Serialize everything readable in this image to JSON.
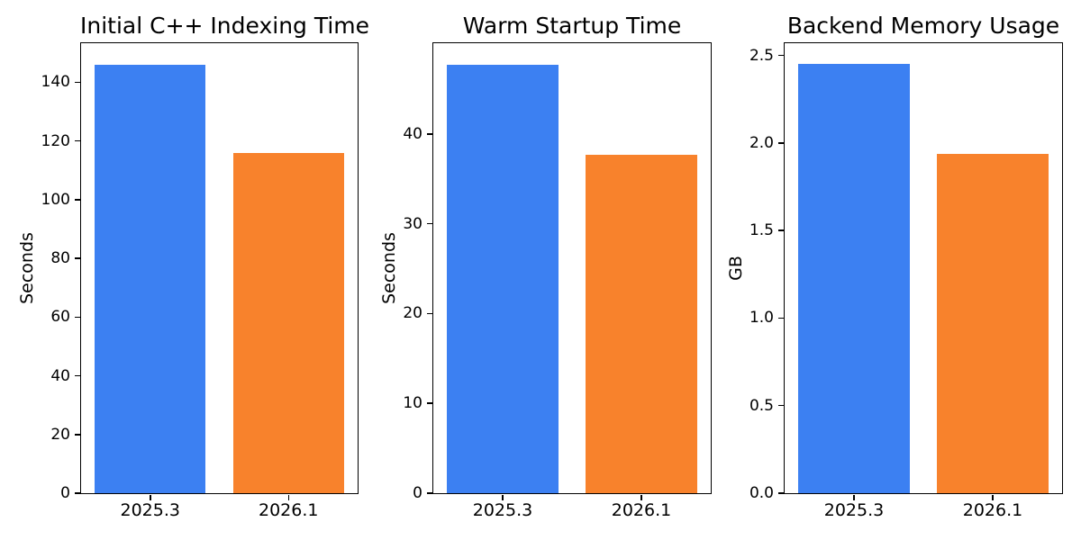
{
  "figure": {
    "background": "#ffffff",
    "axis_color": "#000000",
    "text_color": "#000000",
    "bar_color_2025_3": "#3c80f2",
    "bar_color_2026_1": "#f8822c"
  },
  "chart_data": [
    {
      "type": "bar",
      "title": "Initial C++ Indexing Time",
      "xlabel": "",
      "ylabel": "Seconds",
      "categories": [
        "2025.3",
        "2026.1"
      ],
      "values": [
        146,
        116
      ],
      "bar_colors": [
        "#3c80f2",
        "#f8822c"
      ],
      "ylim": [
        0,
        153.3
      ],
      "yticks": [
        0,
        20,
        40,
        60,
        80,
        100,
        120,
        140
      ],
      "ytick_labels": [
        "0",
        "20",
        "40",
        "60",
        "80",
        "100",
        "120",
        "140"
      ],
      "grid": false,
      "legend": "none"
    },
    {
      "type": "bar",
      "title": "Warm Startup Time",
      "xlabel": "",
      "ylabel": "Seconds",
      "categories": [
        "2025.3",
        "2026.1"
      ],
      "values": [
        47.7,
        37.7
      ],
      "bar_colors": [
        "#3c80f2",
        "#f8822c"
      ],
      "ylim": [
        0,
        50.1
      ],
      "yticks": [
        0,
        10,
        20,
        30,
        40
      ],
      "ytick_labels": [
        "0",
        "10",
        "20",
        "30",
        "40"
      ],
      "grid": false,
      "legend": "none"
    },
    {
      "type": "bar",
      "title": "Backend Memory Usage",
      "xlabel": "",
      "ylabel": "GB",
      "categories": [
        "2025.3",
        "2026.1"
      ],
      "values": [
        2.45,
        1.94
      ],
      "bar_colors": [
        "#3c80f2",
        "#f8822c"
      ],
      "ylim": [
        0,
        2.57
      ],
      "yticks": [
        0,
        0.5,
        1.0,
        1.5,
        2.0,
        2.5
      ],
      "ytick_labels": [
        "0.0",
        "0.5",
        "1.0",
        "1.5",
        "2.0",
        "2.5"
      ],
      "grid": false,
      "legend": "none"
    }
  ]
}
